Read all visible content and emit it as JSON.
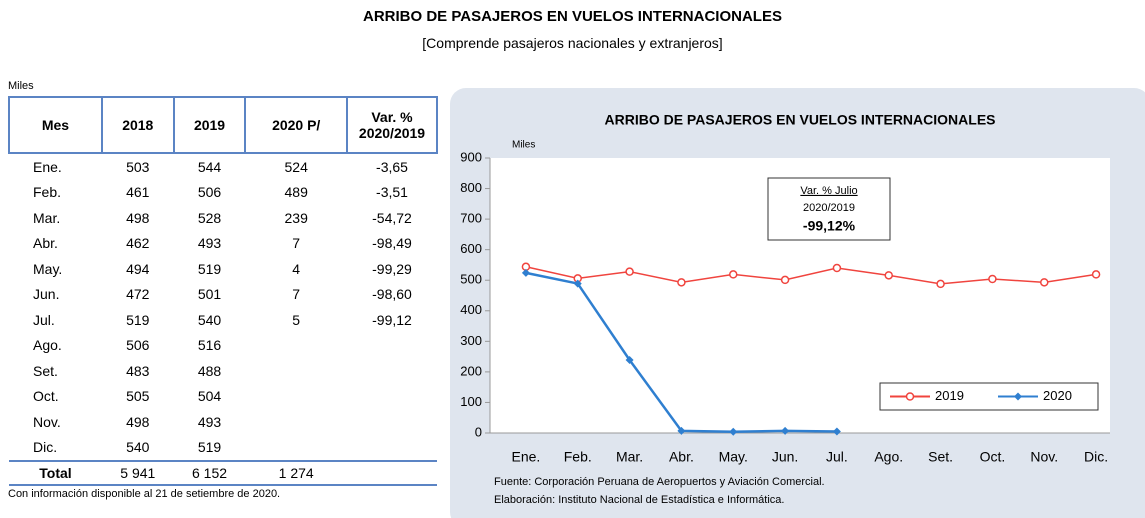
{
  "header": {
    "title": "ARRIBO DE PASAJEROS EN VUELOS INTERNACIONALES",
    "subtitle": "[Comprende pasajeros nacionales y extranjeros]"
  },
  "table": {
    "unit": "Miles",
    "columns": [
      "Mes",
      "2018",
      "2019",
      "2020 P/",
      "Var. % 2020/2019"
    ],
    "rows": [
      [
        "Ene.",
        "503",
        "544",
        "524",
        "-3,65"
      ],
      [
        "Feb.",
        "461",
        "506",
        "489",
        "-3,51"
      ],
      [
        "Mar.",
        "498",
        "528",
        "239",
        "-54,72"
      ],
      [
        "Abr.",
        "462",
        "493",
        "7",
        "-98,49"
      ],
      [
        "May.",
        "494",
        "519",
        "4",
        "-99,29"
      ],
      [
        "Jun.",
        "472",
        "501",
        "7",
        "-98,60"
      ],
      [
        "Jul.",
        "519",
        "540",
        "5",
        "-99,12"
      ],
      [
        "Ago.",
        "506",
        "516"
      ],
      [
        "Set.",
        "483",
        "488"
      ],
      [
        "Oct.",
        "505",
        "504"
      ],
      [
        "Nov.",
        "498",
        "493"
      ],
      [
        "Dic.",
        "540",
        "519"
      ]
    ],
    "total": [
      "Total",
      "5 941",
      "6 152",
      "1 274"
    ],
    "note": "Con información disponible al 21 de setiembre de 2020."
  },
  "chart_data": {
    "type": "line",
    "title": "ARRIBO DE PASAJEROS EN VUELOS INTERNACIONALES",
    "y_label": "Miles",
    "categories": [
      "Ene.",
      "Feb.",
      "Mar.",
      "Abr.",
      "May.",
      "Jun.",
      "Jul.",
      "Ago.",
      "Set.",
      "Oct.",
      "Nov.",
      "Dic."
    ],
    "series": [
      {
        "name": "2019",
        "color": "#f0443e",
        "marker": "circle",
        "values": [
          544,
          506,
          528,
          493,
          519,
          501,
          540,
          516,
          488,
          504,
          493,
          519
        ]
      },
      {
        "name": "2020",
        "color": "#2f7fd0",
        "marker": "diamond",
        "values": [
          524,
          489,
          239,
          7,
          4,
          7,
          5,
          null,
          null,
          null,
          null,
          null
        ]
      }
    ],
    "ylim": [
      0,
      900
    ],
    "yticks": [
      0,
      100,
      200,
      300,
      400,
      500,
      600,
      700,
      800,
      900
    ],
    "legend": "lower right",
    "annotation": {
      "title": "Var. % Julio",
      "subtitle": "2020/2019",
      "value": "-99,12%"
    },
    "source": "Fuente: Corporación Peruana de Aeropuertos y Aviación Comercial.",
    "credit": "Elaboración: Instituto Nacional de Estadística e Informática."
  }
}
